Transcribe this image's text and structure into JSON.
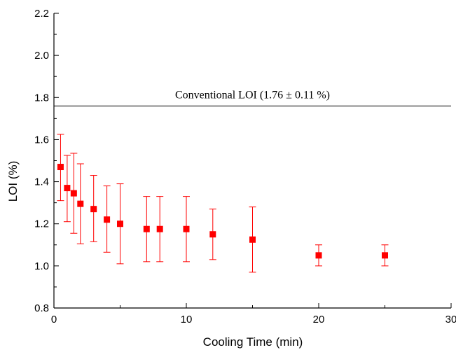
{
  "chart_data": {
    "type": "scatter",
    "xlabel": "Cooling Time (min)",
    "ylabel": "LOI (%)",
    "xlim": [
      0,
      30
    ],
    "ylim": [
      0.8,
      2.2
    ],
    "x_ticks": [
      "0",
      "10",
      "20",
      "30"
    ],
    "y_ticks": [
      "0.8",
      "1.0",
      "1.2",
      "1.4",
      "1.6",
      "1.8",
      "2.0",
      "2.2"
    ],
    "grid": false,
    "legend": "none",
    "marker_color": "#ff0000",
    "series": [
      {
        "x": [
          0.5,
          1,
          1.5,
          2,
          3,
          4,
          5,
          7,
          8,
          10,
          12,
          15,
          20,
          25
        ],
        "y": [
          1.47,
          1.37,
          1.345,
          1.295,
          1.27,
          1.22,
          1.2,
          1.175,
          1.175,
          1.175,
          1.15,
          1.125,
          1.05,
          1.05
        ],
        "y_upper": [
          1.625,
          1.525,
          1.535,
          1.485,
          1.43,
          1.38,
          1.39,
          1.33,
          1.33,
          1.33,
          1.27,
          1.28,
          1.1,
          1.1
        ],
        "y_lower": [
          1.31,
          1.21,
          1.155,
          1.105,
          1.115,
          1.065,
          1.01,
          1.02,
          1.02,
          1.02,
          1.03,
          0.97,
          1.0,
          1.0
        ]
      }
    ],
    "reference_line": {
      "y": 1.76,
      "label": "Conventional LOI (1.76 ± 0.11 %)",
      "color": "#000000"
    }
  }
}
